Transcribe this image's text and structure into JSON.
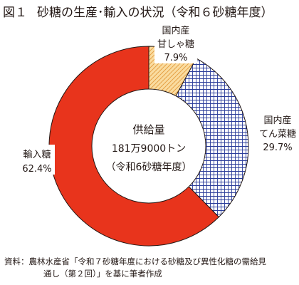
{
  "figure": {
    "number": "図１",
    "title": "砂糖の生産･輸入の状況（令和６砂糖年度）"
  },
  "chart_data": {
    "type": "pie",
    "donut": true,
    "center_label": [
      "供給量",
      "181万9000トン",
      "（令和6砂糖年度）"
    ],
    "slices": [
      {
        "name_lines": [
          "国内産",
          "甘しゃ糖"
        ],
        "value": 7.9,
        "value_label": "7.9%",
        "fill": "#fadca0",
        "pattern": "diagonal-hatch"
      },
      {
        "name_lines": [
          "国内産",
          "てん菜糖"
        ],
        "value": 29.7,
        "value_label": "29.7%",
        "fill": "#ffffff",
        "pattern": "blue-crosshatch"
      },
      {
        "name_lines": [
          "輸入糖"
        ],
        "value": 62.4,
        "value_label": "62.4%",
        "fill": "#e8341c",
        "pattern": "solid"
      }
    ],
    "start_angle_deg": 0,
    "direction": "clockwise"
  },
  "colors": {
    "import_red": "#e8341c",
    "hatch_blue": "#2b3d9a",
    "hatch_orange": "#e39a3c",
    "cane_fill": "#fadca0",
    "text": "#231815"
  },
  "source": {
    "lines": [
      "資料：農林水産省「令和７砂糖年度における砂糖及び異性化糖の需給見",
      "通し（第２回）」を基に筆者作成"
    ]
  }
}
